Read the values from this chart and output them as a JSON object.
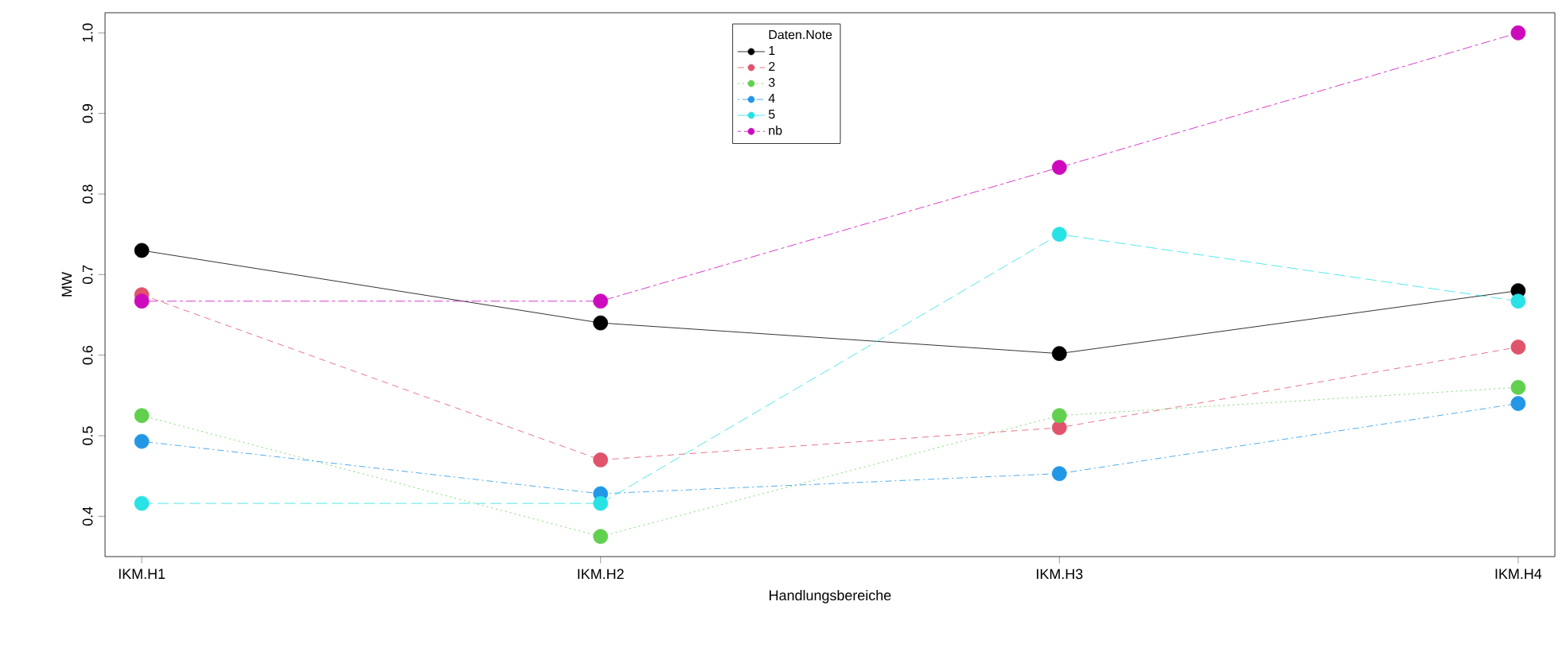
{
  "chart_data": {
    "type": "line",
    "xlabel": "Handlungsbereiche",
    "ylabel": "MW",
    "legend_title": "Daten.Note",
    "categories": [
      "IKM.H1",
      "IKM.H2",
      "IKM.H3",
      "IKM.H4"
    ],
    "series": [
      {
        "name": "1",
        "color": "#000000",
        "line_style": "solid",
        "values": [
          0.73,
          0.64,
          0.602,
          0.68
        ]
      },
      {
        "name": "2",
        "color": "#df536b",
        "line_style": "dashed",
        "values": [
          0.675,
          0.47,
          0.51,
          0.61
        ]
      },
      {
        "name": "3",
        "color": "#61d04f",
        "line_style": "dotted",
        "values": [
          0.525,
          0.375,
          0.525,
          0.56
        ]
      },
      {
        "name": "4",
        "color": "#2297e6",
        "line_style": "dashdot",
        "values": [
          0.493,
          0.428,
          0.453,
          0.54
        ]
      },
      {
        "name": "5",
        "color": "#28e2e5",
        "line_style": "longdash",
        "values": [
          0.416,
          0.416,
          0.75,
          0.667
        ]
      },
      {
        "name": "nb",
        "color": "#cd0bbc",
        "line_style": "twodash",
        "values": [
          0.667,
          0.667,
          0.833,
          1.0
        ]
      }
    ],
    "ylim": [
      0.35,
      1.025
    ],
    "yticks": [
      {
        "value": 0.4,
        "label": "0.4"
      },
      {
        "value": 0.5,
        "label": "0.5"
      },
      {
        "value": 0.6,
        "label": "0.6"
      },
      {
        "value": 0.7,
        "label": "0.7"
      },
      {
        "value": 0.8,
        "label": "0.8"
      },
      {
        "value": 0.9,
        "label": "0.9"
      },
      {
        "value": 1.0,
        "label": "1.0"
      }
    ],
    "marker": "circle",
    "legend": "top",
    "grid": false
  }
}
